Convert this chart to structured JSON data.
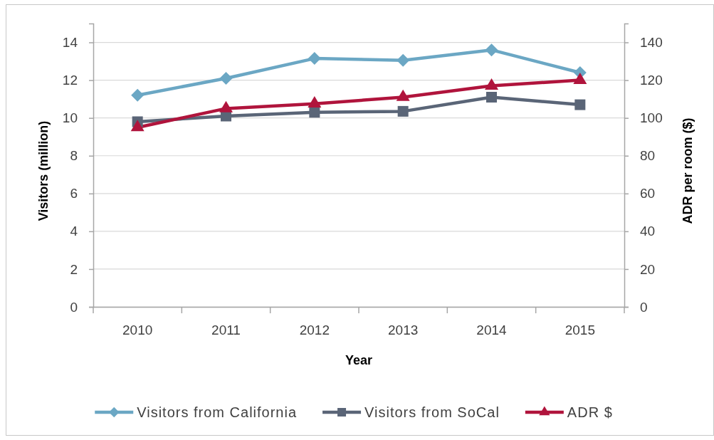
{
  "chart_data": {
    "type": "line",
    "xlabel": "Year",
    "ylabel": "Visitors (million)",
    "y2label": "ADR per room ($)",
    "categories": [
      "2010",
      "2011",
      "2012",
      "2013",
      "2014",
      "2015"
    ],
    "series": [
      {
        "name": "Visitors from California",
        "color": "#6ba7c4",
        "marker": "diamond",
        "values": [
          11.2,
          12.1,
          13.15,
          13.05,
          13.6,
          12.4
        ]
      },
      {
        "name": "Visitors from SoCal",
        "color": "#5a6577",
        "marker": "square",
        "values": [
          9.8,
          10.1,
          10.3,
          10.35,
          11.1,
          10.7
        ]
      },
      {
        "name": "ADR $",
        "color": "#b0143c",
        "marker": "triangle",
        "axis": "y2",
        "values": [
          95,
          105,
          107.5,
          111,
          117,
          120
        ]
      }
    ],
    "ylim": [
      0,
      15
    ],
    "yticks": [
      0,
      2,
      4,
      6,
      8,
      10,
      12,
      14
    ],
    "y2lim": [
      0,
      150
    ],
    "y2ticks": [
      0,
      20,
      40,
      60,
      80,
      100,
      120,
      140
    ],
    "grid": "y",
    "legend": "bottom",
    "line_style": "solid"
  }
}
